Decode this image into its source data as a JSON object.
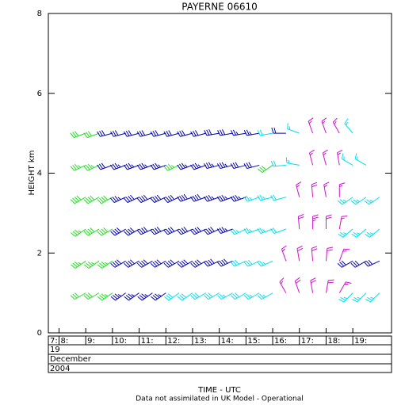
{
  "chart_data": {
    "type": "wind-barb",
    "title": "PAYERNE 06610",
    "y_label": "HEIGHT km",
    "x_label": "TIME - UTC",
    "note": "Data not assimilated in UK Model - Operational",
    "date_rows": [
      "19",
      "December",
      "2004"
    ],
    "xlim": [
      7.6,
      20.45
    ],
    "xticks": [
      {
        "value": 7.6,
        "label": "7:"
      },
      {
        "value": 8,
        "label": "8:"
      },
      {
        "value": 9,
        "label": "9:"
      },
      {
        "value": 10,
        "label": "10:"
      },
      {
        "value": 11,
        "label": "11:"
      },
      {
        "value": 12,
        "label": "12:"
      },
      {
        "value": 13,
        "label": "13:"
      },
      {
        "value": 14,
        "label": "14:"
      },
      {
        "value": 15,
        "label": "15:"
      },
      {
        "value": 16,
        "label": "16:"
      },
      {
        "value": 17,
        "label": "17:"
      },
      {
        "value": 18,
        "label": "18:"
      },
      {
        "value": 19,
        "label": "19:"
      }
    ],
    "ylim": [
      0,
      8
    ],
    "yticks": [
      0,
      2,
      4,
      6,
      8
    ],
    "series": [
      {
        "color": "#22e022",
        "x": [
          9,
          9,
          9,
          9,
          9,
          9,
          9.5,
          9.5,
          9.5,
          9.5,
          9.5,
          9.5,
          10,
          10,
          10,
          10,
          12.5,
          16
        ],
        "y": [
          1,
          1.8,
          2.6,
          3.4,
          4.2,
          5,
          1,
          1.8,
          2.6,
          3.4,
          4.2,
          5,
          1,
          1.8,
          2.6,
          3.4,
          4.2,
          4.2
        ],
        "direction": [
          240,
          235,
          235,
          240,
          245,
          250,
          240,
          235,
          240,
          240,
          245,
          250,
          235,
          235,
          240,
          240,
          245,
          235
        ],
        "speed": [
          30,
          35,
          35,
          40,
          35,
          30,
          30,
          35,
          40,
          40,
          35,
          30,
          35,
          35,
          40,
          40,
          35,
          30
        ]
      },
      {
        "color": "#0000b4",
        "x": [
          10,
          10,
          10.5,
          10.5,
          10.5,
          10.5,
          10.5,
          10.5,
          11,
          11,
          11,
          11,
          11,
          11,
          11.5,
          11.5,
          11.5,
          11.5,
          11.5,
          11.5,
          12,
          12,
          12,
          12,
          12,
          12,
          12.5,
          12.5,
          12.5,
          12.5,
          13,
          13,
          13,
          13,
          13,
          13.5,
          13.5,
          13.5,
          13.5,
          13.5,
          14,
          14,
          14,
          14,
          14,
          14.5,
          14.5,
          14.5,
          14.5,
          14.5,
          15,
          15,
          15,
          15.5,
          15.5,
          16.5,
          19,
          19.5,
          20
        ],
        "y": [
          4.2,
          5,
          1,
          1.8,
          2.6,
          3.4,
          4.2,
          5,
          1,
          1.8,
          2.6,
          3.4,
          4.2,
          5,
          1,
          1.8,
          2.6,
          3.4,
          4.2,
          5,
          1,
          1.8,
          2.6,
          3.4,
          4.2,
          5,
          1.8,
          2.6,
          3.4,
          5,
          1.8,
          2.6,
          3.4,
          4.2,
          5,
          1.8,
          2.6,
          3.4,
          4.2,
          5,
          1.8,
          2.6,
          3.4,
          4.2,
          5,
          1.8,
          2.6,
          3.4,
          4.2,
          5,
          3.4,
          4.2,
          5,
          4.2,
          5,
          5,
          1.8,
          1.8,
          1.8
        ],
        "direction": [
          250,
          255,
          235,
          240,
          240,
          245,
          250,
          255,
          235,
          240,
          240,
          245,
          250,
          255,
          235,
          240,
          245,
          245,
          250,
          255,
          235,
          240,
          245,
          245,
          250,
          255,
          240,
          245,
          245,
          255,
          240,
          245,
          250,
          250,
          255,
          240,
          245,
          250,
          250,
          255,
          245,
          245,
          250,
          255,
          260,
          245,
          250,
          250,
          255,
          260,
          250,
          255,
          260,
          255,
          260,
          270,
          240,
          240,
          245
        ],
        "speed": [
          30,
          30,
          35,
          40,
          40,
          35,
          35,
          30,
          35,
          40,
          40,
          40,
          35,
          30,
          35,
          40,
          40,
          40,
          35,
          30,
          35,
          40,
          40,
          40,
          35,
          30,
          40,
          40,
          40,
          30,
          40,
          40,
          40,
          35,
          30,
          40,
          40,
          40,
          35,
          30,
          40,
          40,
          35,
          35,
          30,
          40,
          35,
          35,
          35,
          30,
          35,
          30,
          25,
          30,
          25,
          20,
          30,
          30,
          30
        ]
      },
      {
        "color": "#00e0ee",
        "x": [
          12.5,
          13,
          13.5,
          14,
          14.5,
          15,
          15,
          15,
          15.5,
          15.5,
          15.5,
          15.5,
          16,
          16,
          16,
          16,
          16,
          16.5,
          16.5,
          16.5,
          17,
          17,
          19,
          19,
          19,
          19,
          19,
          19.5,
          19.5,
          19.5,
          19.5,
          20,
          20,
          20
        ],
        "y": [
          1,
          1,
          1,
          1,
          1,
          1,
          1.8,
          2.6,
          1,
          1.8,
          2.6,
          3.4,
          1,
          1.8,
          2.6,
          3.4,
          5,
          2.6,
          3.4,
          4.2,
          4.2,
          5,
          1,
          2.6,
          3.4,
          4.2,
          5,
          1,
          2.6,
          3.4,
          4.2,
          1,
          2.6,
          3.4
        ],
        "direction": [
          235,
          235,
          240,
          240,
          240,
          240,
          245,
          245,
          240,
          245,
          250,
          250,
          240,
          245,
          250,
          255,
          260,
          250,
          255,
          265,
          280,
          290,
          225,
          230,
          235,
          300,
          320,
          225,
          230,
          235,
          300,
          225,
          230,
          235
        ],
        "speed": [
          30,
          30,
          30,
          30,
          25,
          30,
          30,
          25,
          25,
          30,
          25,
          25,
          25,
          25,
          25,
          25,
          20,
          20,
          20,
          20,
          15,
          15,
          25,
          25,
          25,
          15,
          15,
          25,
          25,
          25,
          15,
          25,
          25,
          25
        ]
      },
      {
        "color": "#d010d0",
        "x": [
          16.5,
          16.5,
          17,
          17,
          17,
          17,
          17.5,
          17.5,
          17.5,
          17.5,
          17.5,
          17.5,
          18,
          18,
          18,
          18,
          18,
          18,
          18.5,
          18.5,
          18.5,
          18.5,
          18.5,
          18.5
        ],
        "y": [
          1,
          1.8,
          1,
          1.8,
          2.6,
          3.4,
          1,
          1.8,
          2.6,
          3.4,
          4.2,
          5,
          1,
          1.8,
          2.6,
          3.4,
          4.2,
          5,
          1,
          1.8,
          2.6,
          3.4,
          4.2,
          5
        ],
        "direction": [
          330,
          340,
          340,
          350,
          355,
          345,
          350,
          355,
          0,
          355,
          345,
          340,
          10,
          5,
          0,
          350,
          345,
          340,
          30,
          20,
          10,
          0,
          350,
          330
        ],
        "speed": [
          15,
          15,
          20,
          20,
          20,
          15,
          20,
          20,
          25,
          20,
          15,
          15,
          20,
          20,
          20,
          15,
          15,
          15,
          15,
          15,
          15,
          15,
          15,
          15
        ]
      }
    ]
  }
}
